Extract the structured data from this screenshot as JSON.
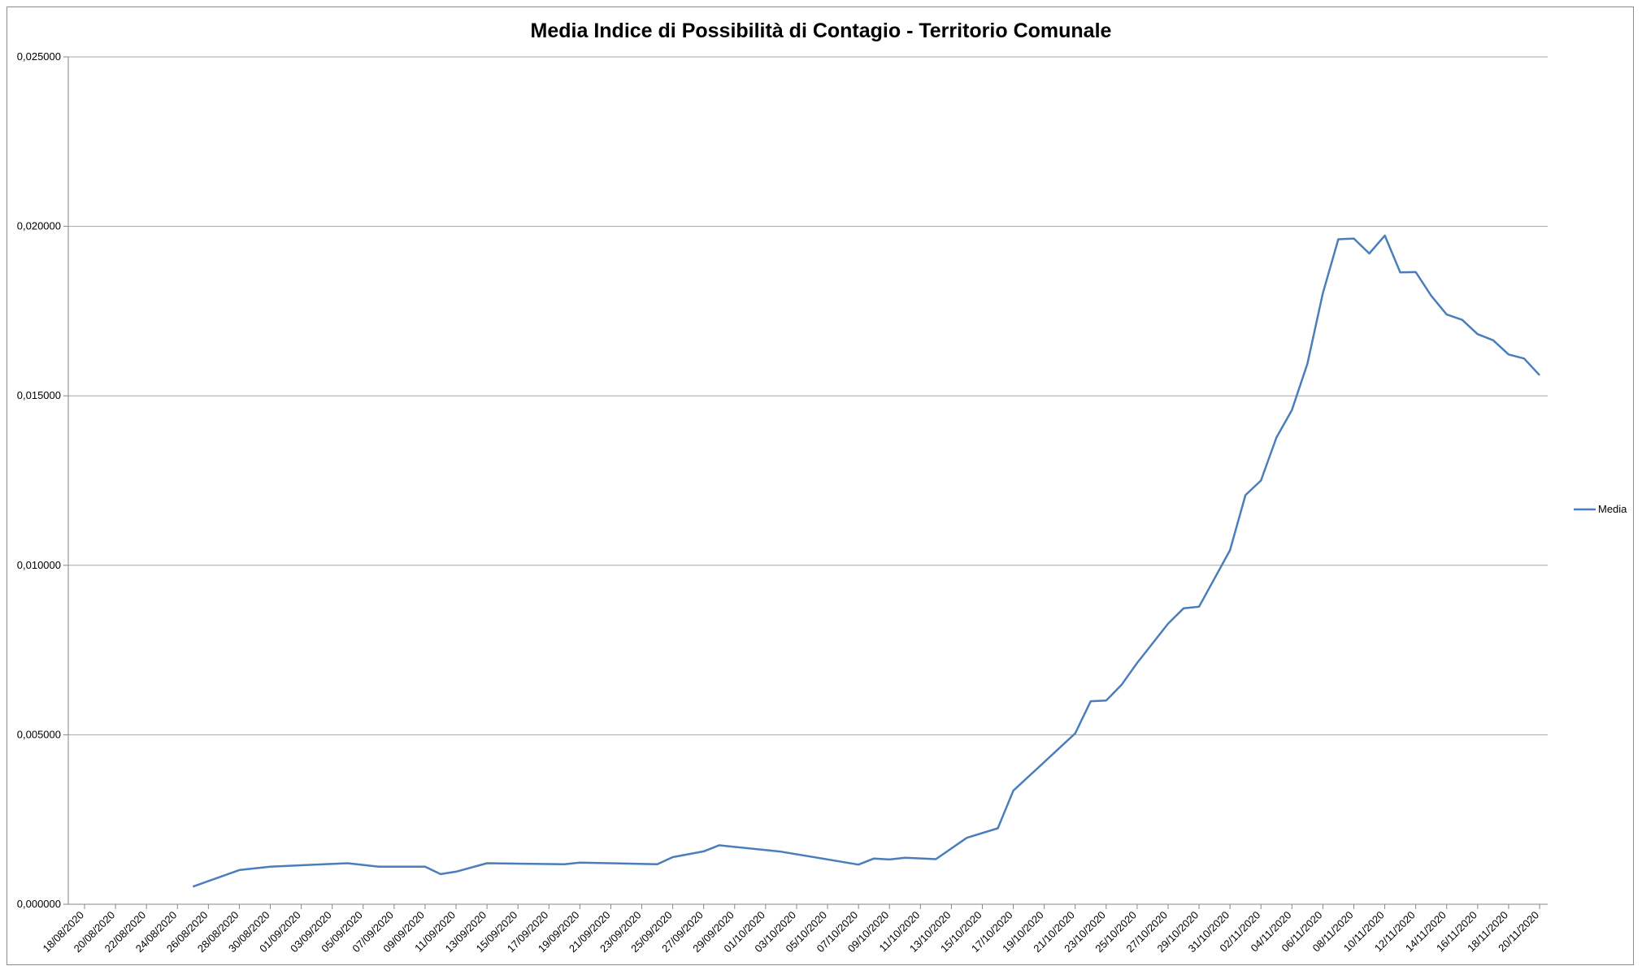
{
  "chart_data": {
    "type": "line",
    "title": "Media Indice di Possibilità di Contagio - Territorio Comunale",
    "xlabel": "",
    "ylabel": "",
    "ylim": [
      0,
      0.025
    ],
    "yticks": [
      "0,000000",
      "0,005000",
      "0,010000",
      "0,015000",
      "0,020000",
      "0,025000"
    ],
    "ytick_values": [
      0,
      0.005,
      0.01,
      0.015,
      0.02,
      0.025
    ],
    "x_start": "18/08/2020",
    "x_end": "20/11/2020",
    "xticks": [
      "18/08/2020",
      "20/08/2020",
      "22/08/2020",
      "24/08/2020",
      "26/08/2020",
      "28/08/2020",
      "30/08/2020",
      "01/09/2020",
      "03/09/2020",
      "05/09/2020",
      "07/09/2020",
      "09/09/2020",
      "11/09/2020",
      "13/09/2020",
      "15/09/2020",
      "17/09/2020",
      "19/09/2020",
      "21/09/2020",
      "23/09/2020",
      "25/09/2020",
      "27/09/2020",
      "29/09/2020",
      "01/10/2020",
      "03/10/2020",
      "05/10/2020",
      "07/10/2020",
      "09/10/2020",
      "11/10/2020",
      "13/10/2020",
      "15/10/2020",
      "17/10/2020",
      "19/10/2020",
      "21/10/2020",
      "23/10/2020",
      "25/10/2020",
      "27/10/2020",
      "29/10/2020",
      "31/10/2020",
      "02/11/2020",
      "04/11/2020",
      "06/11/2020",
      "08/11/2020",
      "10/11/2020",
      "12/11/2020",
      "14/11/2020",
      "16/11/2020",
      "18/11/2020",
      "20/11/2020"
    ],
    "grid": true,
    "legend_position": "right",
    "series": [
      {
        "name": "Media",
        "color": "#4a7ebb",
        "points": [
          [
            "25/08/2020",
            0.00052
          ],
          [
            "28/08/2020",
            0.00101
          ],
          [
            "30/08/2020",
            0.00111
          ],
          [
            "04/09/2020",
            0.00121
          ],
          [
            "06/09/2020",
            0.00111
          ],
          [
            "09/09/2020",
            0.00111
          ],
          [
            "10/09/2020",
            0.00089
          ],
          [
            "11/09/2020",
            0.00096
          ],
          [
            "13/09/2020",
            0.00121
          ],
          [
            "18/09/2020",
            0.00118
          ],
          [
            "19/09/2020",
            0.00123
          ],
          [
            "24/09/2020",
            0.00118
          ],
          [
            "25/09/2020",
            0.00139
          ],
          [
            "27/09/2020",
            0.00156
          ],
          [
            "28/09/2020",
            0.00174
          ],
          [
            "02/10/2020",
            0.00155
          ],
          [
            "07/10/2020",
            0.00117
          ],
          [
            "08/10/2020",
            0.00135
          ],
          [
            "09/10/2020",
            0.00132
          ],
          [
            "10/10/2020",
            0.00137
          ],
          [
            "12/10/2020",
            0.00133
          ],
          [
            "14/10/2020",
            0.00196
          ],
          [
            "16/10/2020",
            0.00224
          ],
          [
            "17/10/2020",
            0.00335
          ],
          [
            "20/10/2020",
            0.00462
          ],
          [
            "21/10/2020",
            0.00504
          ],
          [
            "22/10/2020",
            0.00599
          ],
          [
            "23/10/2020",
            0.00601
          ],
          [
            "24/10/2020",
            0.00648
          ],
          [
            "25/10/2020",
            0.00712
          ],
          [
            "27/10/2020",
            0.00828
          ],
          [
            "28/10/2020",
            0.00873
          ],
          [
            "29/10/2020",
            0.00878
          ],
          [
            "31/10/2020",
            0.01044
          ],
          [
            "01/11/2020",
            0.01207
          ],
          [
            "02/11/2020",
            0.0125
          ],
          [
            "03/11/2020",
            0.01377
          ],
          [
            "04/11/2020",
            0.01458
          ],
          [
            "05/11/2020",
            0.01595
          ],
          [
            "06/11/2020",
            0.01803
          ],
          [
            "07/11/2020",
            0.01962
          ],
          [
            "08/11/2020",
            0.01964
          ],
          [
            "09/11/2020",
            0.0192
          ],
          [
            "10/11/2020",
            0.01973
          ],
          [
            "11/11/2020",
            0.01864
          ],
          [
            "12/11/2020",
            0.01865
          ],
          [
            "13/11/2020",
            0.01795
          ],
          [
            "14/11/2020",
            0.0174
          ],
          [
            "15/11/2020",
            0.01724
          ],
          [
            "16/11/2020",
            0.01682
          ],
          [
            "17/11/2020",
            0.01664
          ],
          [
            "18/11/2020",
            0.01622
          ],
          [
            "19/11/2020",
            0.0161
          ],
          [
            "20/11/2020",
            0.01561
          ]
        ]
      }
    ]
  }
}
